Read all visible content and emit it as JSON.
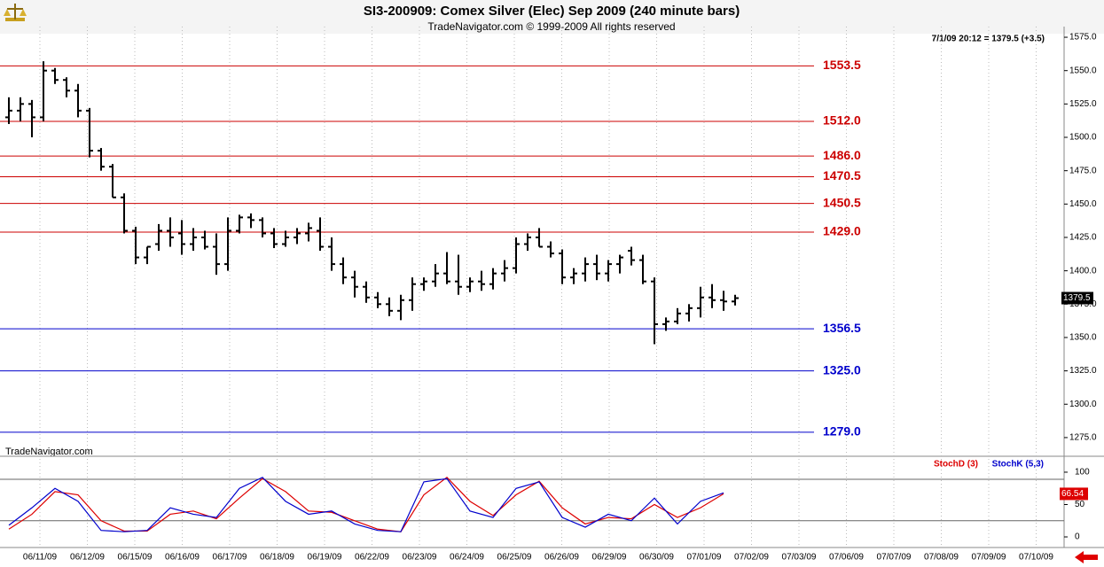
{
  "chart_data": [
    {
      "type": "ohlc",
      "title": "SI3-200909:  Comex Silver (Elec) Sep 2009  (240 minute bars)",
      "subtitle": "TradeNavigator.com © 1999-2009 All rights reserved",
      "watermark": "TradeNavigator.com",
      "info": "7/1/09 20:12 = 1379.5 (+3.5)",
      "color": "#000000",
      "categories": [
        "06/11/09",
        "06/12/09",
        "06/15/09",
        "06/16/09",
        "06/17/09",
        "06/18/09",
        "06/19/09",
        "06/22/09",
        "06/23/09",
        "06/24/09",
        "06/25/09",
        "06/26/09",
        "06/29/09",
        "06/30/09",
        "07/01/09",
        "07/02/09",
        "07/03/09",
        "07/06/09",
        "07/07/09",
        "07/08/09",
        "07/09/09",
        "07/10/09"
      ],
      "open": [
        1515,
        1520,
        1525,
        1515,
        1550,
        1543,
        1535,
        1520,
        1490,
        1478,
        1455,
        1430,
        1410,
        1420,
        1430,
        1428,
        1420,
        1425,
        1418,
        1405,
        1430,
        1440,
        1438,
        1428,
        1420,
        1425,
        1428,
        1430,
        1418,
        1405,
        1395,
        1388,
        1380,
        1375,
        1370,
        1378,
        1390,
        1392,
        1398,
        1392,
        1388,
        1392,
        1390,
        1398,
        1402,
        1420,
        1425,
        1418,
        1413,
        1395,
        1398,
        1405,
        1398,
        1405,
        1415,
        1408,
        1392,
        1360,
        1362,
        1368,
        1372,
        1380,
        1378,
        1377
      ],
      "high": [
        1530,
        1530,
        1528,
        1557,
        1552,
        1545,
        1540,
        1522,
        1492,
        1480,
        1458,
        1433,
        1418,
        1435,
        1440,
        1438,
        1432,
        1430,
        1428,
        1440,
        1442,
        1443,
        1440,
        1432,
        1430,
        1432,
        1436,
        1440,
        1425,
        1410,
        1400,
        1392,
        1384,
        1380,
        1382,
        1395,
        1395,
        1405,
        1414,
        1412,
        1395,
        1400,
        1402,
        1408,
        1425,
        1428,
        1432,
        1422,
        1416,
        1402,
        1410,
        1412,
        1408,
        1412,
        1418,
        1412,
        1395,
        1365,
        1372,
        1375,
        1388,
        1390,
        1385,
        1382
      ],
      "low": [
        1510,
        1512,
        1500,
        1512,
        1540,
        1530,
        1515,
        1485,
        1475,
        1455,
        1428,
        1405,
        1405,
        1415,
        1418,
        1412,
        1415,
        1416,
        1397,
        1400,
        1428,
        1432,
        1425,
        1417,
        1418,
        1420,
        1422,
        1415,
        1400,
        1390,
        1380,
        1376,
        1372,
        1366,
        1363,
        1370,
        1385,
        1388,
        1390,
        1382,
        1384,
        1385,
        1386,
        1392,
        1398,
        1415,
        1418,
        1410,
        1390,
        1390,
        1392,
        1393,
        1392,
        1398,
        1404,
        1390,
        1345,
        1355,
        1360,
        1362,
        1365,
        1372,
        1370,
        1374
      ],
      "close": [
        1520,
        1525,
        1515,
        1550,
        1543,
        1535,
        1520,
        1490,
        1478,
        1455,
        1430,
        1410,
        1418,
        1430,
        1425,
        1420,
        1425,
        1418,
        1405,
        1430,
        1440,
        1438,
        1428,
        1420,
        1425,
        1428,
        1432,
        1418,
        1405,
        1395,
        1388,
        1380,
        1375,
        1370,
        1378,
        1390,
        1392,
        1398,
        1392,
        1388,
        1392,
        1390,
        1398,
        1402,
        1420,
        1425,
        1418,
        1413,
        1395,
        1398,
        1405,
        1398,
        1405,
        1410,
        1408,
        1392,
        1360,
        1362,
        1368,
        1372,
        1380,
        1378,
        1377,
        1379.5
      ],
      "levels": [
        {
          "value": 1553.5,
          "label": "1553.5",
          "color": "#cc0000"
        },
        {
          "value": 1512,
          "label": "1512.0",
          "color": "#cc0000"
        },
        {
          "value": 1486,
          "label": "1486.0",
          "color": "#cc0000"
        },
        {
          "value": 1470.5,
          "label": "1470.5",
          "color": "#cc0000"
        },
        {
          "value": 1450.5,
          "label": "1450.5",
          "color": "#cc0000"
        },
        {
          "value": 1429,
          "label": "1429.0",
          "color": "#cc0000"
        },
        {
          "value": 1356.5,
          "label": "1356.5",
          "color": "#0000cc"
        },
        {
          "value": 1325,
          "label": "1325.0",
          "color": "#0000cc"
        },
        {
          "value": 1279,
          "label": "1279.0",
          "color": "#0000cc"
        }
      ],
      "ylim": [
        1261,
        1583
      ],
      "yticks": [
        {
          "value": 1275,
          "label": "1275.0"
        },
        {
          "value": 1300,
          "label": "1300.0"
        },
        {
          "value": 1325,
          "label": "1325.0"
        },
        {
          "value": 1350,
          "label": "1350.0"
        },
        {
          "value": 1375,
          "label": "1375.0"
        },
        {
          "value": 1400,
          "label": "1400.0"
        },
        {
          "value": 1425,
          "label": "1425.0"
        },
        {
          "value": 1450,
          "label": "1450.0"
        },
        {
          "value": 1475,
          "label": "1475.0"
        },
        {
          "value": 1500,
          "label": "1500.0"
        },
        {
          "value": 1525,
          "label": "1525.0"
        },
        {
          "value": 1550,
          "label": "1550.0"
        },
        {
          "value": 1575,
          "label": "1575.0"
        }
      ],
      "grid": true
    },
    {
      "type": "line",
      "series": [
        {
          "name": "StochD (3)",
          "color": "#dd0000",
          "values": [
            12,
            35,
            70,
            65,
            25,
            9,
            9,
            35,
            40,
            28,
            60,
            90,
            70,
            40,
            38,
            25,
            12,
            8,
            65,
            92,
            55,
            33,
            65,
            86,
            45,
            20,
            30,
            28,
            50,
            30,
            45,
            66.54
          ]
        },
        {
          "name": "StochK (5,3)",
          "color": "#0000cc",
          "values": [
            18,
            45,
            75,
            55,
            10,
            8,
            10,
            45,
            35,
            30,
            75,
            92,
            55,
            35,
            40,
            20,
            10,
            8,
            85,
            90,
            40,
            30,
            75,
            85,
            30,
            15,
            35,
            25,
            60,
            20,
            55,
            68
          ]
        }
      ],
      "hlines": [
        89,
        25
      ],
      "ylim": [
        -16.4,
        120.5
      ],
      "yticks": [
        0,
        50,
        100
      ]
    }
  ]
}
